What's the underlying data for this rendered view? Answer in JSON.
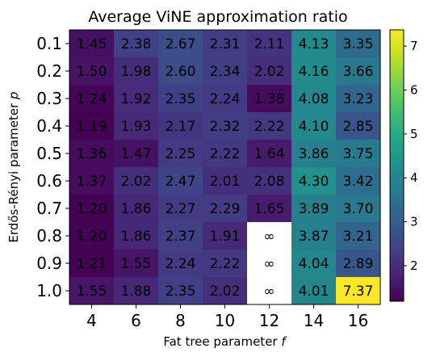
{
  "chart_data": {
    "type": "heatmap",
    "title": "Average ViNE approximation ratio",
    "xlabel_prefix": "Fat tree parameter ",
    "xlabel_var": "f",
    "ylabel_prefix": "Erdős-Rényi parameter ",
    "ylabel_var": "p",
    "x": [
      "4",
      "6",
      "8",
      "10",
      "12",
      "14",
      "16"
    ],
    "y": [
      "0.1",
      "0.2",
      "0.3",
      "0.4",
      "0.5",
      "0.6",
      "0.7",
      "0.8",
      "0.9",
      "1.0"
    ],
    "values": [
      [
        1.45,
        2.38,
        2.67,
        2.31,
        2.11,
        4.13,
        3.35
      ],
      [
        1.5,
        1.98,
        2.6,
        2.34,
        2.02,
        4.16,
        3.66
      ],
      [
        1.24,
        1.92,
        2.35,
        2.24,
        1.38,
        4.08,
        3.23
      ],
      [
        1.19,
        1.93,
        2.17,
        2.32,
        2.22,
        4.1,
        2.85
      ],
      [
        1.36,
        1.47,
        2.25,
        2.22,
        1.64,
        3.86,
        3.75
      ],
      [
        1.37,
        2.02,
        2.47,
        2.01,
        2.08,
        4.3,
        3.42
      ],
      [
        1.2,
        1.86,
        2.27,
        2.29,
        1.65,
        3.89,
        3.7
      ],
      [
        1.2,
        1.86,
        2.37,
        1.91,
        "∞",
        3.87,
        3.21
      ],
      [
        1.21,
        1.55,
        2.24,
        2.22,
        "∞",
        4.04,
        2.89
      ],
      [
        1.55,
        1.88,
        2.35,
        2.02,
        "∞",
        4.01,
        7.37
      ]
    ],
    "colorbar": {
      "colormap": "viridis",
      "range": [
        1.19,
        7.37
      ],
      "ticks": [
        "2",
        "3",
        "4",
        "5",
        "6",
        "7"
      ]
    },
    "legend": "none",
    "grid": false
  }
}
